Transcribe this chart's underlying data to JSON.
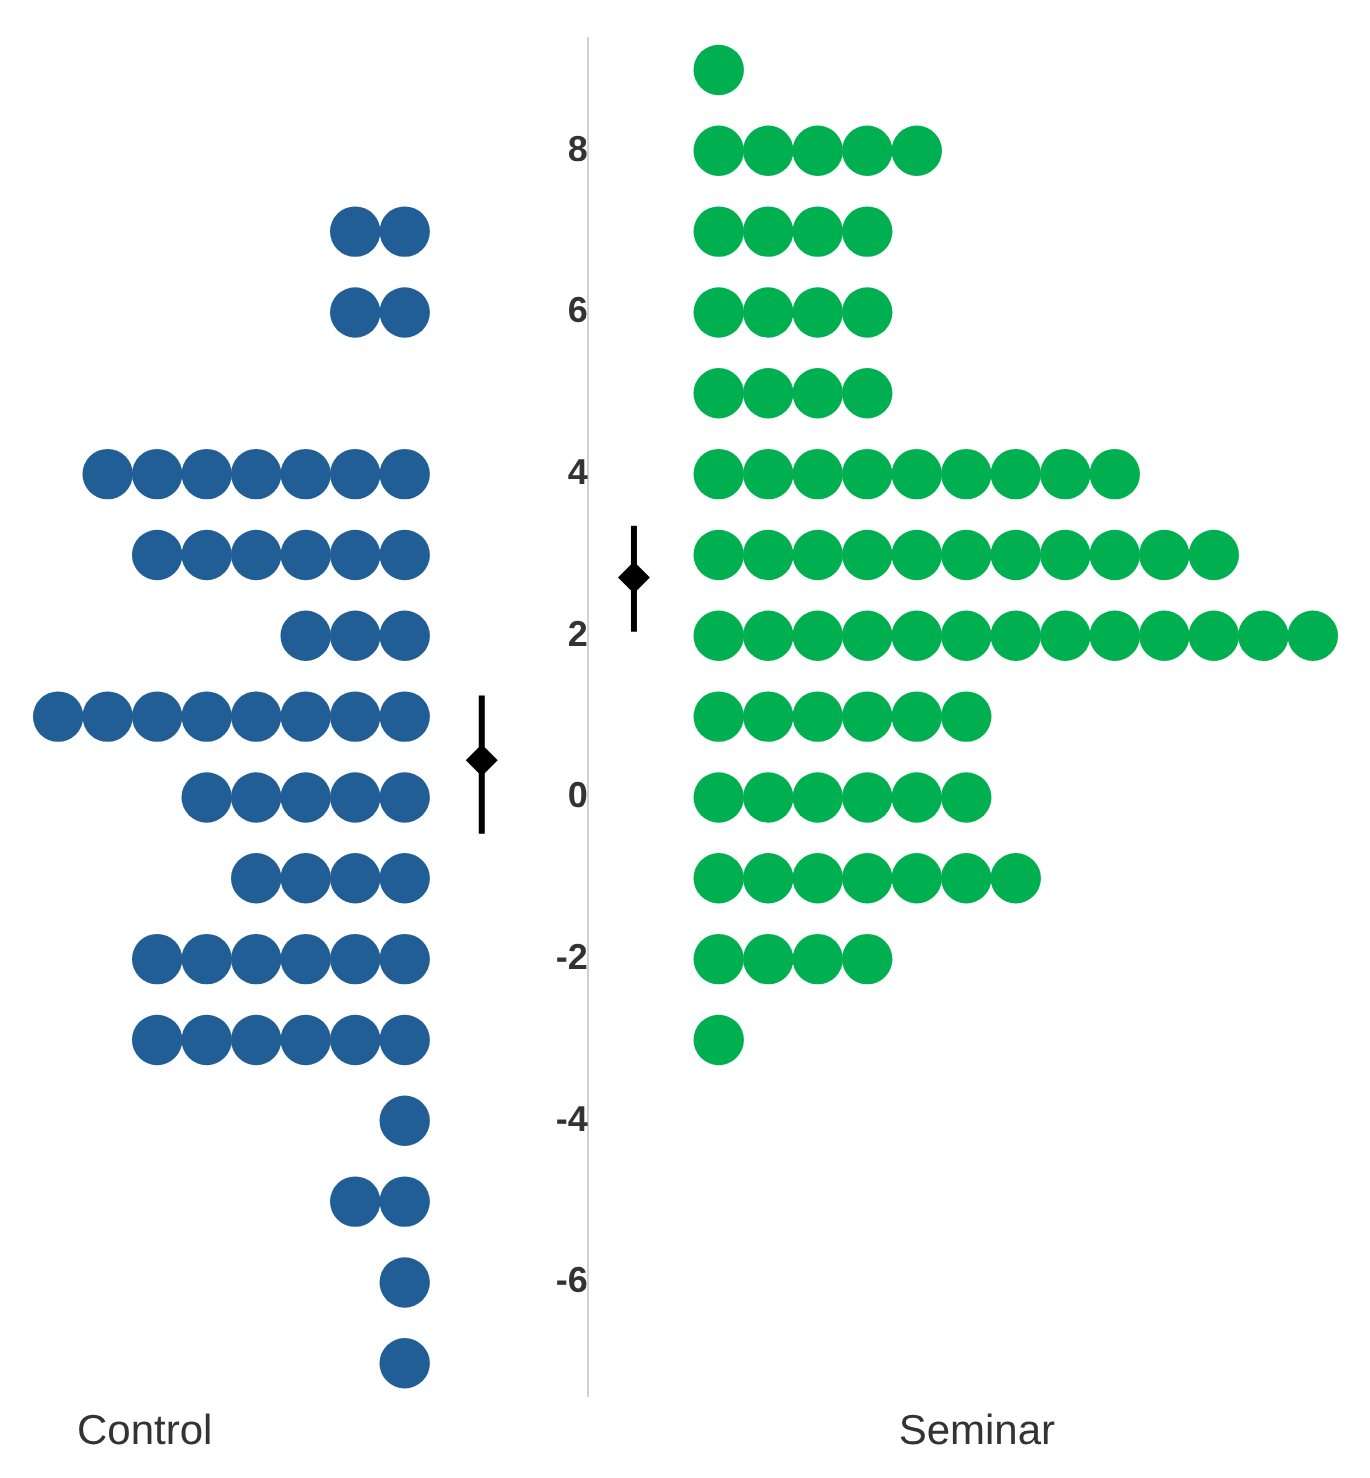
{
  "chart_data": {
    "type": "scatter",
    "categories": [
      "Control",
      "Seminar"
    ],
    "series": [
      {
        "marker": "circle",
        "color": "#215e96",
        "x": [
          "Control",
          "Control",
          "Control",
          "Control",
          "Control",
          "Control",
          "Control",
          "Control",
          "Control",
          "Control",
          "Control",
          "Control",
          "Control",
          "Control",
          "Control",
          "Control",
          "Control",
          "Control",
          "Control",
          "Control",
          "Control",
          "Control",
          "Control",
          "Control",
          "Control",
          "Control",
          "Control",
          "Control",
          "Control",
          "Control",
          "Control",
          "Control",
          "Control",
          "Control",
          "Control",
          "Control",
          "Control",
          "Control",
          "Control",
          "Control",
          "Control",
          "Control",
          "Control",
          "Control",
          "Control",
          "Control",
          "Control",
          "Control",
          "Control",
          "Control",
          "Control",
          "Control",
          "Control",
          "Control"
        ],
        "values": [
          7,
          7,
          6,
          6,
          4,
          4,
          4,
          4,
          4,
          4,
          4,
          3,
          3,
          3,
          3,
          3,
          3,
          2,
          2,
          2,
          1,
          1,
          1,
          1,
          1,
          1,
          1,
          1,
          0,
          0,
          0,
          0,
          0,
          -1,
          -1,
          -1,
          -1,
          -2,
          -2,
          -2,
          -2,
          -2,
          -2,
          -3,
          -3,
          -3,
          -3,
          -3,
          -3,
          -4,
          -5,
          -5,
          -6,
          -7
        ]
      },
      {
        "marker": "circle",
        "color": "#00b050",
        "x": [
          "Seminar",
          "Seminar",
          "Seminar",
          "Seminar",
          "Seminar",
          "Seminar",
          "Seminar",
          "Seminar",
          "Seminar",
          "Seminar",
          "Seminar",
          "Seminar",
          "Seminar",
          "Seminar",
          "Seminar",
          "Seminar",
          "Seminar",
          "Seminar",
          "Seminar",
          "Seminar",
          "Seminar",
          "Seminar",
          "Seminar",
          "Seminar",
          "Seminar",
          "Seminar",
          "Seminar",
          "Seminar",
          "Seminar",
          "Seminar",
          "Seminar",
          "Seminar",
          "Seminar",
          "Seminar",
          "Seminar",
          "Seminar",
          "Seminar",
          "Seminar",
          "Seminar",
          "Seminar",
          "Seminar",
          "Seminar",
          "Seminar",
          "Seminar",
          "Seminar",
          "Seminar",
          "Seminar",
          "Seminar",
          "Seminar",
          "Seminar",
          "Seminar",
          "Seminar",
          "Seminar",
          "Seminar",
          "Seminar",
          "Seminar",
          "Seminar",
          "Seminar",
          "Seminar",
          "Seminar",
          "Seminar",
          "Seminar",
          "Seminar",
          "Seminar",
          "Seminar",
          "Seminar",
          "Seminar",
          "Seminar",
          "Seminar",
          "Seminar",
          "Seminar",
          "Seminar",
          "Seminar",
          "Seminar",
          "Seminar"
        ],
        "values": [
          9,
          8,
          8,
          8,
          8,
          8,
          7,
          7,
          7,
          7,
          6,
          6,
          6,
          6,
          5,
          5,
          5,
          5,
          4,
          4,
          4,
          4,
          4,
          4,
          4,
          4,
          4,
          3,
          3,
          3,
          3,
          3,
          3,
          3,
          3,
          3,
          3,
          3,
          2,
          2,
          2,
          2,
          2,
          2,
          2,
          2,
          2,
          2,
          2,
          2,
          2,
          1,
          1,
          1,
          1,
          1,
          1,
          0,
          0,
          0,
          0,
          0,
          0,
          -1,
          -1,
          -1,
          -1,
          -1,
          -1,
          -1,
          -2,
          -2,
          -2,
          -2,
          -3
        ]
      },
      {
        "marker": "diamond",
        "color": "#000000",
        "x": [
          "Control",
          "Seminar"
        ],
        "values": [
          0.46,
          2.72
        ],
        "errors": [
          [
            -0.45,
            1.26
          ],
          [
            2.05,
            3.36
          ]
        ]
      }
    ],
    "ylim": [
      -7.4,
      9.4
    ],
    "yticks": [
      -6,
      -4,
      -2,
      0,
      2,
      4,
      6,
      8
    ]
  }
}
